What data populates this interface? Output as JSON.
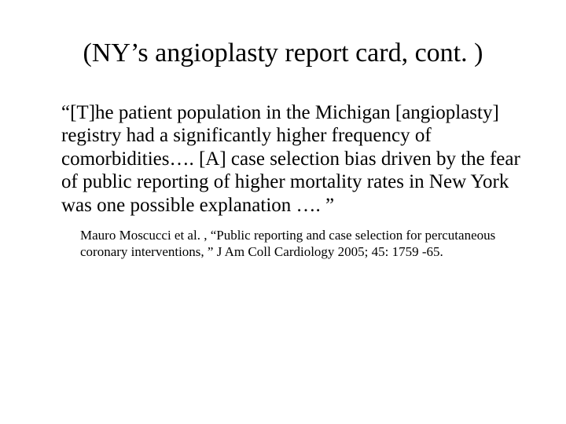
{
  "slide": {
    "title": "(NY’s angioplasty report card, cont. )",
    "quote": "“[T]he patient population in the Michigan [angioplasty] registry had a significantly higher frequency of comorbidities…. [A] case selection bias driven by the fear of public reporting of higher mortality rates in New York was one possible explanation …. ”",
    "citation": "Mauro Moscucci et al. , “Public reporting and case selection for percutaneous coronary interventions, ” J Am Coll Cardiology 2005; 45: 1759 -65."
  },
  "colors": {
    "background": "#ffffff",
    "text": "#000000"
  },
  "typography": {
    "font_family": "Times New Roman",
    "title_fontsize_pt": 26,
    "quote_fontsize_pt": 19,
    "citation_fontsize_pt": 13
  }
}
